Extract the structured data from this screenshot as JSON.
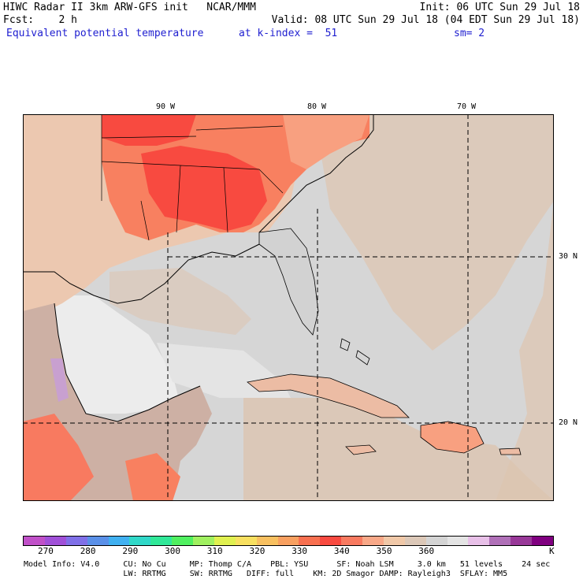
{
  "header": {
    "line1_left": "HIWC Radar II 3km ARW-GFS init   NCAR/MMM",
    "line1_right": "Init: 06 UTC Sun 29 Jul 18",
    "line2_left": "Fcst:    2 h",
    "line2_right": "Valid: 08 UTC Sun 29 Jul 18 (04 EDT Sun 29 Jul 18)",
    "field": "Equivalent potential temperature",
    "level": "at k-index =  51",
    "smooth": "sm= 2"
  },
  "axes": {
    "lon_labels": [
      "90 W",
      "80 W",
      "70 W"
    ],
    "lat_labels": [
      "30 N",
      "20 N"
    ]
  },
  "colorbar": {
    "colors": [
      "#c050c8",
      "#a050d8",
      "#8070e8",
      "#5a90e8",
      "#40b0f0",
      "#30d8c8",
      "#30e898",
      "#50f060",
      "#a0f060",
      "#e0f050",
      "#f8e060",
      "#f8c060",
      "#f8a060",
      "#f87050",
      "#f84a40",
      "#f87a60",
      "#f8a888",
      "#f0c8a8",
      "#dcc8b8",
      "#d4d4d4",
      "#e4e4e4",
      "#e8c0e8",
      "#b070b8",
      "#983898",
      "#800080"
    ],
    "ticks": [
      "270",
      "280",
      "290",
      "300",
      "310",
      "320",
      "330",
      "340",
      "350",
      "360"
    ],
    "unit": "K"
  },
  "footer": {
    "line1": "Model Info: V4.0     CU: No Cu     MP: Thomp C/A    PBL: YSU      SF: Noah LSM     3.0 km   51 levels    24 sec",
    "line2": "                     LW: RRTMG     SW: RRTMG   DIFF: full    KM: 2D Smagor DAMP: Rayleigh3  SFLAY: MM5"
  }
}
